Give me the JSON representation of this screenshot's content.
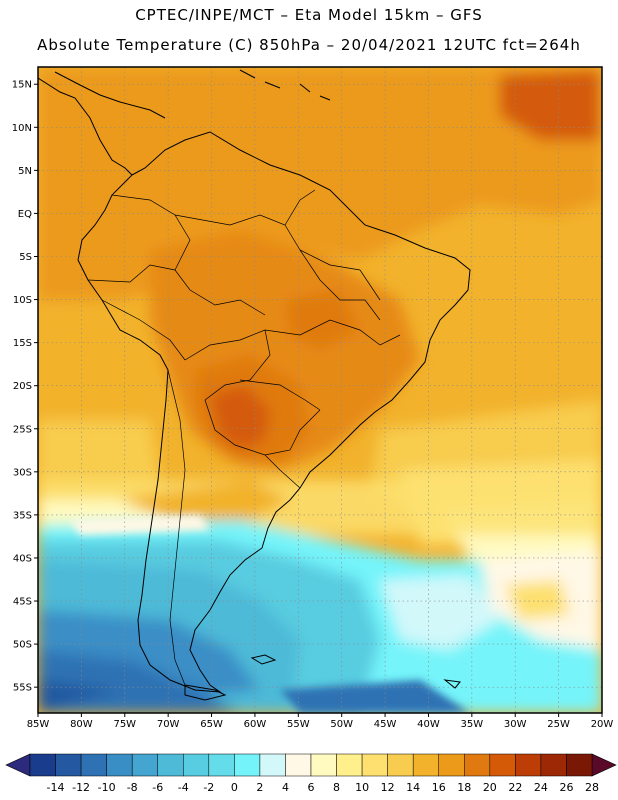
{
  "header": {
    "line1": "CPTEC/INPE/MCT –  Eta Model 15km – GFS",
    "line2": "Absolute Temperature (C) 850hPa – 20/04/2021 12UTC fct=264h"
  },
  "axes": {
    "lat_labels": [
      "15N",
      "10N",
      "5N",
      "EQ",
      "5S",
      "10S",
      "15S",
      "20S",
      "25S",
      "30S",
      "35S",
      "40S",
      "45S",
      "50S",
      "55S"
    ],
    "lat_values": [
      15,
      10,
      5,
      0,
      -5,
      -10,
      -15,
      -20,
      -25,
      -30,
      -35,
      -40,
      -45,
      -50,
      -55
    ],
    "lon_labels": [
      "85W",
      "80W",
      "75W",
      "70W",
      "65W",
      "60W",
      "55W",
      "50W",
      "45W",
      "40W",
      "35W",
      "30W",
      "25W",
      "20W"
    ],
    "lon_values": [
      -85,
      -80,
      -75,
      -70,
      -65,
      -60,
      -55,
      -50,
      -45,
      -40,
      -35,
      -30,
      -25,
      -20
    ],
    "lat_range": [
      -58,
      17
    ],
    "lon_range": [
      -85,
      -20
    ]
  },
  "colorbar": {
    "labels": [
      "-14",
      "-12",
      "-10",
      "-8",
      "-6",
      "-4",
      "-2",
      "0",
      "2",
      "4",
      "6",
      "8",
      "10",
      "12",
      "14",
      "16",
      "18",
      "20",
      "22",
      "24",
      "26",
      "28"
    ],
    "colors": [
      "#1a3c8c",
      "#2458a0",
      "#2e72b4",
      "#3a8ec6",
      "#44a6d0",
      "#4ebad8",
      "#58cce0",
      "#64dcea",
      "#74f4fa",
      "#d2f8fa",
      "#fff8e6",
      "#fffac0",
      "#fff08c",
      "#fde070",
      "#f8cc4e",
      "#f2b22c",
      "#ec9a1a",
      "#e07a10",
      "#d45a08",
      "#bc3e06",
      "#9c2806",
      "#7a1806"
    ],
    "low_arrow_color": "#2c2a7c",
    "high_arrow_color": "#5a0a28"
  }
}
